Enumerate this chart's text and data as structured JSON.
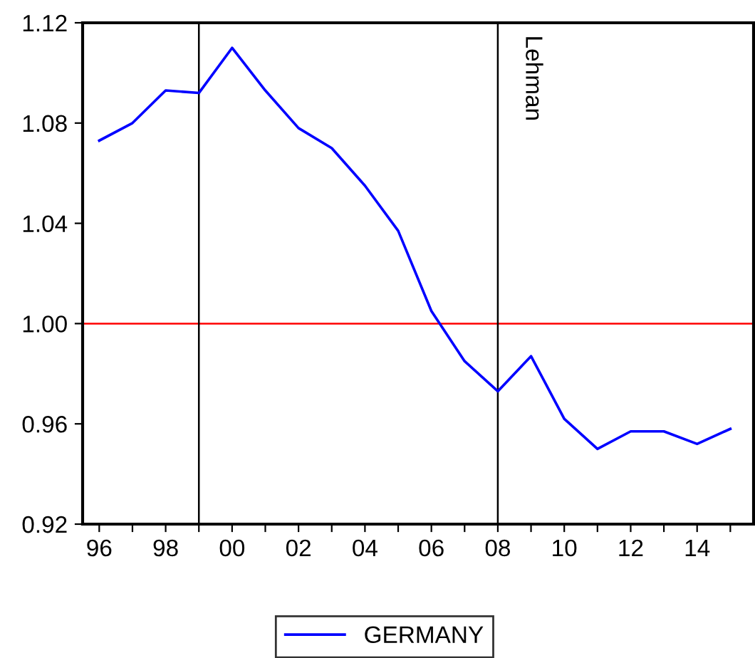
{
  "chart_data": {
    "type": "line",
    "x": [
      1996,
      1997,
      1998,
      1999,
      2000,
      2001,
      2002,
      2003,
      2004,
      2005,
      2006,
      2007,
      2008,
      2009,
      2010,
      2011,
      2012,
      2013,
      2014,
      2015
    ],
    "series": [
      {
        "name": "GERMANY",
        "color": "#0000ff",
        "values": [
          1.073,
          1.08,
          1.093,
          1.092,
          1.11,
          1.093,
          1.078,
          1.07,
          1.055,
          1.037,
          1.005,
          0.985,
          0.973,
          0.987,
          0.962,
          0.95,
          0.957,
          0.957,
          0.952,
          0.958
        ]
      }
    ],
    "xlim": [
      1995.5,
      2015.7
    ],
    "xticks": [
      {
        "value": 1996,
        "label": "96"
      },
      {
        "value": 1997,
        "label": null
      },
      {
        "value": 1998,
        "label": "98"
      },
      {
        "value": 1999,
        "label": null
      },
      {
        "value": 2000,
        "label": "00"
      },
      {
        "value": 2001,
        "label": null
      },
      {
        "value": 2002,
        "label": "02"
      },
      {
        "value": 2003,
        "label": null
      },
      {
        "value": 2004,
        "label": "04"
      },
      {
        "value": 2005,
        "label": null
      },
      {
        "value": 2006,
        "label": "06"
      },
      {
        "value": 2007,
        "label": null
      },
      {
        "value": 2008,
        "label": "08"
      },
      {
        "value": 2009,
        "label": null
      },
      {
        "value": 2010,
        "label": "10"
      },
      {
        "value": 2011,
        "label": null
      },
      {
        "value": 2012,
        "label": "12"
      },
      {
        "value": 2013,
        "label": null
      },
      {
        "value": 2014,
        "label": "14"
      },
      {
        "value": 2015,
        "label": null
      }
    ],
    "ylim": [
      0.92,
      1.12
    ],
    "yticks": [
      {
        "value": 0.92,
        "label": "0.92"
      },
      {
        "value": 0.96,
        "label": "0.96"
      },
      {
        "value": 1.0,
        "label": "1.00"
      },
      {
        "value": 1.04,
        "label": "1.04"
      },
      {
        "value": 1.08,
        "label": "1.08"
      },
      {
        "value": 1.12,
        "label": "1.12"
      }
    ],
    "ref_lines": [
      {
        "axis": "y",
        "value": 1.0,
        "color": "#ff0000"
      },
      {
        "axis": "x",
        "value": 1999,
        "color": "#000000"
      },
      {
        "axis": "x",
        "value": 2008,
        "label": "Lehman",
        "color": "#000000"
      }
    ],
    "grid": false,
    "legend": "bottom",
    "marker": "none",
    "line_style": "solid"
  }
}
